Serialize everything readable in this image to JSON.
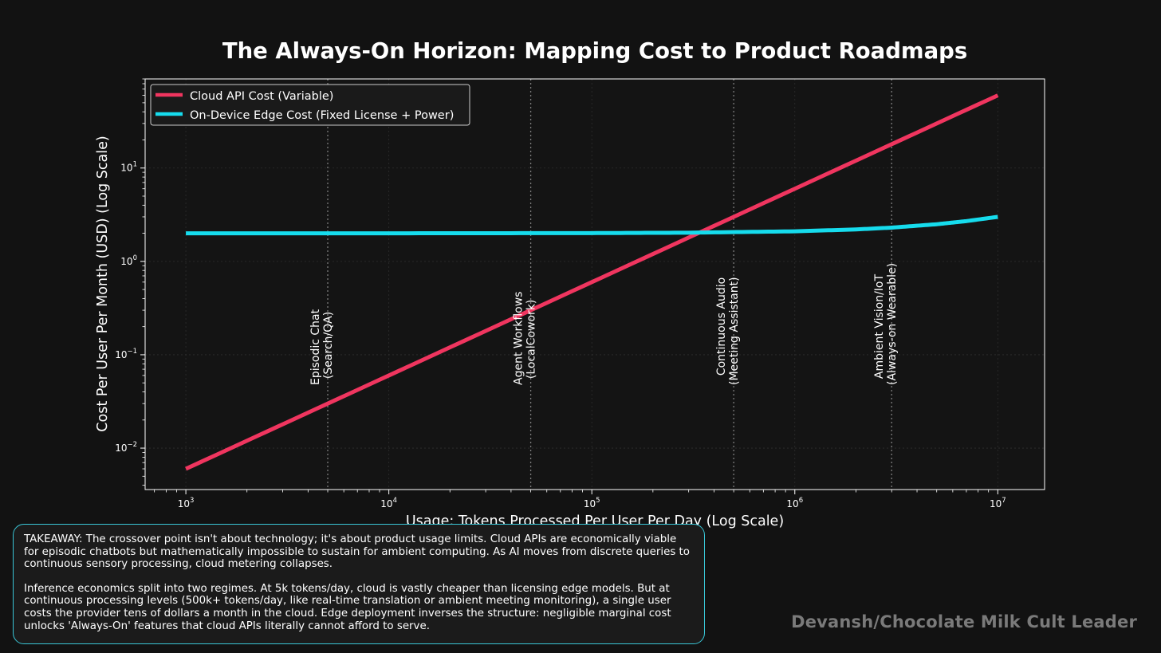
{
  "chart_data": {
    "type": "line",
    "title": "The Always-On Horizon: Mapping Cost to Product Roadmaps",
    "xlabel": "Usage: Tokens Processed Per User Per Day (Log Scale)",
    "ylabel": "Cost Per User Per Month (USD) (Log Scale)",
    "xscale": "log",
    "yscale": "log",
    "xlim": [
      630,
      17000000
    ],
    "ylim": [
      0.0036,
      90
    ],
    "xticks": [
      {
        "base": "10",
        "exp": "3",
        "value": 1000
      },
      {
        "base": "10",
        "exp": "4",
        "value": 10000
      },
      {
        "base": "10",
        "exp": "5",
        "value": 100000
      },
      {
        "base": "10",
        "exp": "6",
        "value": 1000000
      },
      {
        "base": "10",
        "exp": "7",
        "value": 10000000
      }
    ],
    "yticks": [
      {
        "base": "10",
        "exp": "−2",
        "value": 0.01
      },
      {
        "base": "10",
        "exp": "−1",
        "value": 0.1
      },
      {
        "base": "10",
        "exp": "0",
        "value": 1
      },
      {
        "base": "10",
        "exp": "1",
        "value": 10
      }
    ],
    "grid": true,
    "legend_position": "top-left",
    "series": [
      {
        "name": "Cloud API Cost (Variable)",
        "color": "#f0355f",
        "x": [
          1000,
          10000,
          100000,
          1000000,
          10000000
        ],
        "values": [
          0.006,
          0.06,
          0.6,
          6.0,
          60.0
        ]
      },
      {
        "name": "On-Device Edge Cost (Fixed License + Power)",
        "color": "#16dced",
        "x": [
          1000,
          10000,
          100000,
          300000,
          1000000,
          2000000,
          3000000,
          5000000,
          7000000,
          10000000
        ],
        "values": [
          2.0,
          2.0,
          2.01,
          2.03,
          2.1,
          2.2,
          2.3,
          2.5,
          2.7,
          3.0
        ]
      }
    ],
    "annotations": [
      {
        "x": 5000,
        "line1": "Episodic Chat",
        "line2": "(Search/QA)"
      },
      {
        "x": 50000,
        "line1": "Agent Workflows",
        "line2": "(LocalCowork)"
      },
      {
        "x": 500000,
        "line1": "Continuous Audio",
        "line2": "(Meeting Assistant)"
      },
      {
        "x": 3000000,
        "line1": "Ambient Vision/IoT",
        "line2": "(Always-on Wearable)"
      }
    ]
  },
  "takeaway": {
    "paragraph1": "TAKEAWAY: The crossover point isn't about technology; it's about product usage limits. Cloud APIs are economically viable for episodic chatbots but mathematically impossible to sustain for ambient computing. As AI moves from discrete queries to continuous sensory processing, cloud metering collapses.",
    "paragraph2": "Inference economics split into two regimes. At 5k tokens/day, cloud is vastly cheaper than licensing edge models. But at continuous processing levels (500k+ tokens/day, like real-time translation or ambient meeting monitoring), a single user costs the provider tens of dollars a month in the cloud. Edge deployment inverses the structure: negligible marginal cost unlocks 'Always-On' features that cloud APIs literally cannot afford to serve."
  },
  "watermark": "Devansh/Chocolate Milk Cult Leader",
  "colors": {
    "background": "#121212",
    "plot_background": "#141414",
    "cloud": "#f0355f",
    "edge": "#16dced",
    "box_border": "#39c6d6",
    "watermark": "#7a7a7a"
  }
}
